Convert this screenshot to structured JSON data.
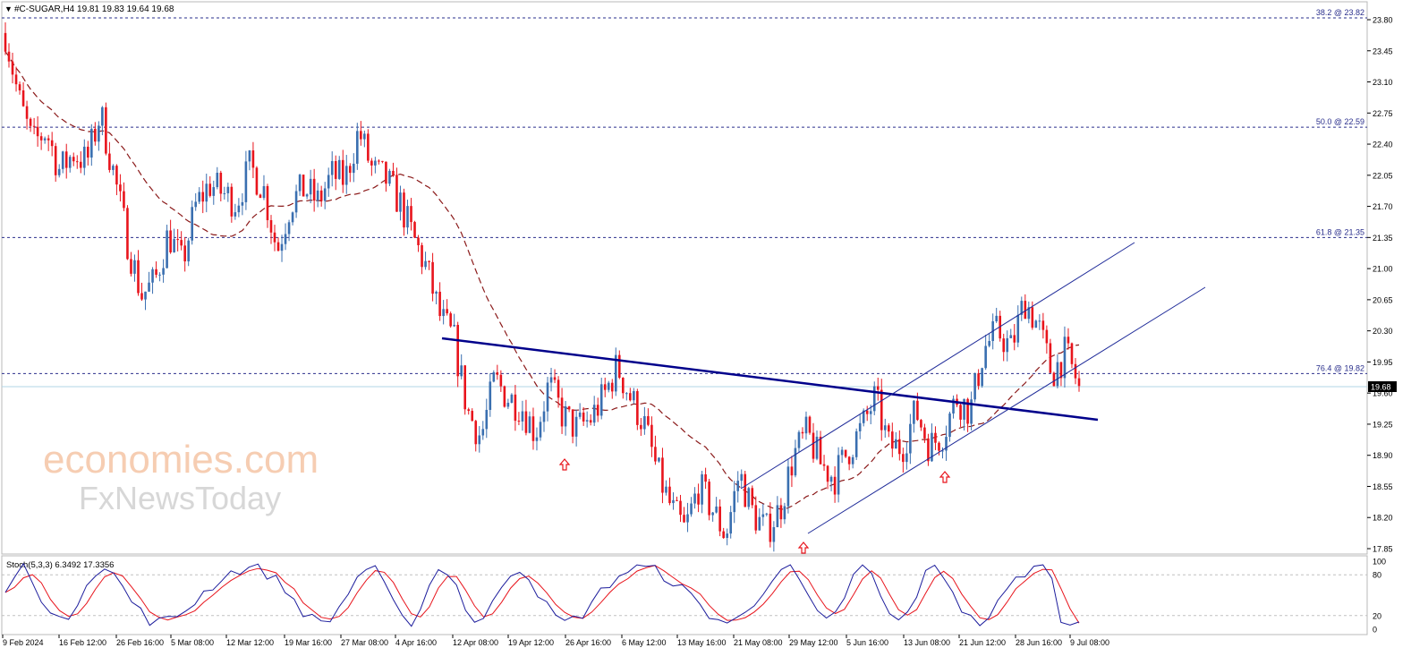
{
  "header": {
    "symbol_line": "#C-SUGAR,H4  19.81 19.83 19.64 19.68"
  },
  "stoch": {
    "label": "Stoch(5,3,3) 6.3492 17.3356",
    "levels": [
      100,
      80,
      20,
      0
    ]
  },
  "watermark": {
    "line1": "economies.com",
    "line2": "FxNewsToday"
  },
  "colors": {
    "bull": "#3a6fb0",
    "bear": "#e8141c",
    "ma": "#8b1a1a",
    "fib": "#2a2f8c",
    "trend": "#00008b",
    "channel": "#1f2b99",
    "arrow": "#e8141c",
    "stoch_main": "#1c1c9c",
    "stoch_signal": "#e8141c"
  },
  "chart_data": {
    "type": "candlestick",
    "symbol": "#C-SUGAR",
    "timeframe": "H4",
    "ylim": [
      17.68,
      23.95
    ],
    "y_ticks": [
      23.8,
      23.45,
      23.1,
      22.75,
      22.4,
      22.05,
      21.7,
      21.35,
      21.0,
      20.65,
      20.3,
      19.95,
      19.6,
      19.25,
      18.9,
      18.55,
      18.2,
      17.85
    ],
    "x_ticks": [
      "9 Feb 2024",
      "16 Feb 12:00",
      "26 Feb 16:00",
      "5 Mar 08:00",
      "12 Mar 12:00",
      "19 Mar 16:00",
      "27 Mar 08:00",
      "4 Apr 16:00",
      "12 Apr 08:00",
      "19 Apr 12:00",
      "26 Apr 16:00",
      "6 May 12:00",
      "13 May 16:00",
      "21 May 08:00",
      "29 May 12:00",
      "5 Jun 16:00",
      "13 Jun 08:00",
      "21 Jun 12:00",
      "28 Jun 16:00",
      "9 Jul 08:00"
    ],
    "current_price": "19.68",
    "current_value": 19.68,
    "fib_levels": [
      {
        "label": "38.2 @ 23.82",
        "value": 23.82
      },
      {
        "label": "50.0 @ 22.59",
        "value": 22.59
      },
      {
        "label": "61.8 @ 21.35",
        "value": 21.35
      },
      {
        "label": "76.4 @ 19.82",
        "value": 19.82
      }
    ],
    "price_path": [
      23.65,
      22.9,
      22.4,
      22.55,
      22.1,
      22.3,
      22.2,
      22.75,
      22.05,
      21.3,
      20.7,
      20.85,
      21.4,
      21.05,
      21.7,
      21.95,
      21.85,
      21.75,
      22.15,
      21.9,
      21.2,
      21.75,
      21.9,
      21.75,
      22.05,
      22.0,
      22.55,
      22.1,
      22.0,
      21.75,
      21.35,
      21.0,
      20.45,
      20.2,
      19.4,
      19.1,
      19.75,
      19.55,
      19.45,
      19.15,
      19.7,
      19.35,
      19.2,
      19.3,
      19.55,
      19.9,
      19.55,
      19.25,
      18.7,
      18.3,
      18.05,
      18.55,
      18.3,
      18.0,
      18.7,
      18.25,
      18.05,
      18.3,
      18.9,
      19.15,
      18.8,
      18.65,
      18.95,
      19.2,
      19.55,
      19.0,
      19.0,
      19.4,
      19.0,
      19.15,
      19.55,
      19.4,
      20.1,
      20.3,
      20.1,
      20.65,
      20.35,
      19.82,
      20.05,
      19.68
    ]
  }
}
